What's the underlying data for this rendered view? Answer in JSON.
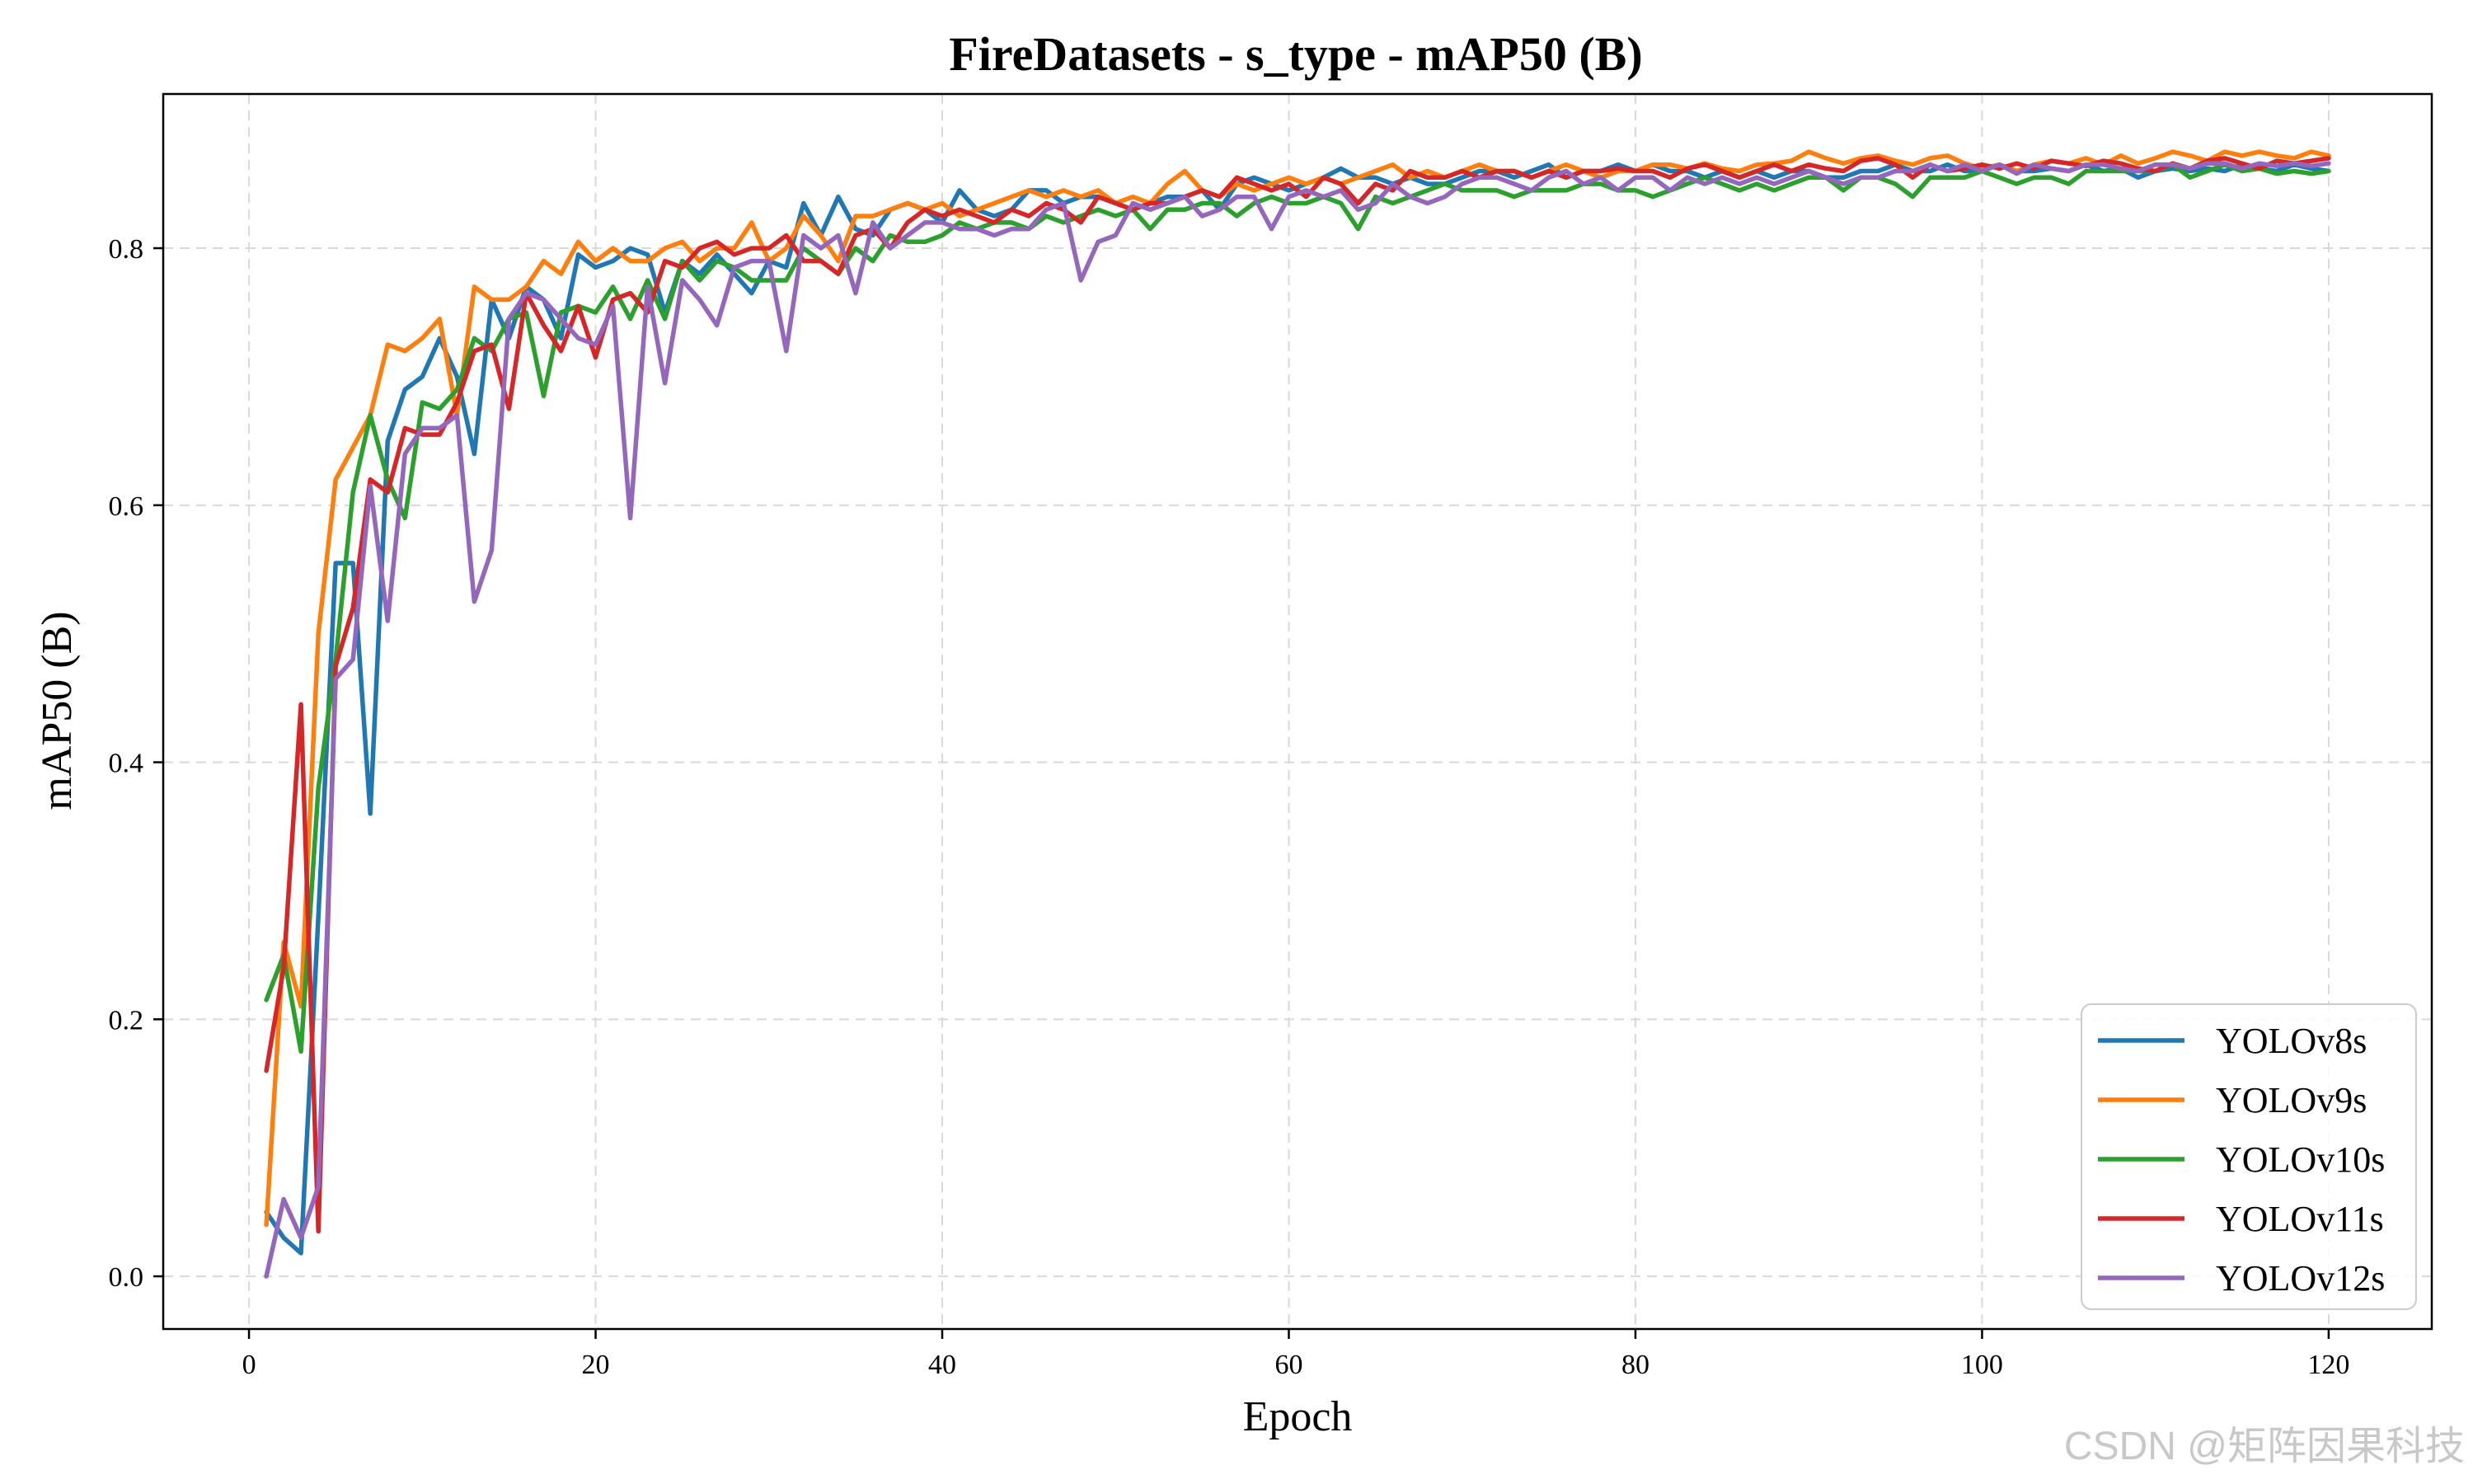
{
  "watermark": "CSDN @矩阵因果科技",
  "chart_data": {
    "type": "line",
    "title": "FireDatasets - s_type - mAP50 (B)",
    "xlabel": "Epoch",
    "ylabel": "mAP50 (B)",
    "xlim": [
      -4.95,
      125.95
    ],
    "ylim": [
      -0.041,
      0.92
    ],
    "xticks": [
      0,
      20,
      40,
      60,
      80,
      100,
      120
    ],
    "yticks": [
      0.0,
      0.2,
      0.4,
      0.6,
      0.8
    ],
    "xtick_labels": [
      "0",
      "20",
      "40",
      "60",
      "80",
      "100",
      "120"
    ],
    "ytick_labels": [
      "0.0",
      "0.2",
      "0.4",
      "0.6",
      "0.8"
    ],
    "grid": true,
    "legend_position": "lower-right",
    "x": [
      1,
      2,
      3,
      4,
      5,
      6,
      7,
      8,
      9,
      10,
      11,
      12,
      13,
      14,
      15,
      16,
      17,
      18,
      19,
      20,
      21,
      22,
      23,
      24,
      25,
      26,
      27,
      28,
      29,
      30,
      31,
      32,
      33,
      34,
      35,
      36,
      37,
      38,
      39,
      40,
      41,
      42,
      43,
      44,
      45,
      46,
      47,
      48,
      49,
      50,
      51,
      52,
      53,
      54,
      55,
      56,
      57,
      58,
      59,
      60,
      61,
      62,
      63,
      64,
      65,
      66,
      67,
      68,
      69,
      70,
      71,
      72,
      73,
      74,
      75,
      76,
      77,
      78,
      79,
      80,
      81,
      82,
      83,
      84,
      85,
      86,
      87,
      88,
      89,
      90,
      91,
      92,
      93,
      94,
      95,
      96,
      97,
      98,
      99,
      100,
      101,
      102,
      103,
      104,
      105,
      106,
      107,
      108,
      109,
      110,
      111,
      112,
      113,
      114,
      115,
      116,
      117,
      118,
      119,
      120
    ],
    "series": [
      {
        "name": "YOLOv8s",
        "color": "#1f77b4",
        "values": [
          0.05,
          0.03,
          0.018,
          0.28,
          0.555,
          0.555,
          0.36,
          0.65,
          0.69,
          0.7,
          0.73,
          0.7,
          0.64,
          0.76,
          0.73,
          0.77,
          0.76,
          0.73,
          0.795,
          0.785,
          0.79,
          0.8,
          0.795,
          0.75,
          0.79,
          0.78,
          0.795,
          0.78,
          0.765,
          0.79,
          0.785,
          0.835,
          0.81,
          0.84,
          0.815,
          0.81,
          0.83,
          0.835,
          0.83,
          0.82,
          0.845,
          0.83,
          0.825,
          0.83,
          0.845,
          0.845,
          0.835,
          0.84,
          0.84,
          0.835,
          0.83,
          0.835,
          0.84,
          0.84,
          0.845,
          0.83,
          0.85,
          0.855,
          0.85,
          0.845,
          0.85,
          0.855,
          0.862,
          0.855,
          0.855,
          0.85,
          0.855,
          0.85,
          0.85,
          0.855,
          0.86,
          0.86,
          0.855,
          0.86,
          0.865,
          0.855,
          0.86,
          0.86,
          0.865,
          0.86,
          0.865,
          0.86,
          0.86,
          0.855,
          0.86,
          0.855,
          0.86,
          0.855,
          0.86,
          0.86,
          0.855,
          0.855,
          0.86,
          0.86,
          0.865,
          0.86,
          0.86,
          0.865,
          0.86,
          0.86,
          0.865,
          0.86,
          0.86,
          0.862,
          0.86,
          0.865,
          0.86,
          0.862,
          0.855,
          0.86,
          0.862,
          0.86,
          0.862,
          0.86,
          0.865,
          0.862,
          0.86,
          0.865,
          0.862,
          0.86
        ]
      },
      {
        "name": "YOLOv9s",
        "color": "#ff7f0e",
        "values": [
          0.04,
          0.26,
          0.21,
          0.5,
          0.62,
          0.645,
          0.67,
          0.725,
          0.72,
          0.73,
          0.745,
          0.67,
          0.77,
          0.76,
          0.76,
          0.77,
          0.79,
          0.78,
          0.805,
          0.79,
          0.8,
          0.79,
          0.79,
          0.8,
          0.805,
          0.79,
          0.8,
          0.8,
          0.82,
          0.79,
          0.8,
          0.825,
          0.81,
          0.79,
          0.825,
          0.825,
          0.83,
          0.835,
          0.83,
          0.835,
          0.825,
          0.83,
          0.835,
          0.84,
          0.845,
          0.84,
          0.845,
          0.84,
          0.845,
          0.835,
          0.84,
          0.835,
          0.85,
          0.86,
          0.845,
          0.84,
          0.85,
          0.845,
          0.85,
          0.855,
          0.85,
          0.855,
          0.85,
          0.855,
          0.86,
          0.865,
          0.855,
          0.86,
          0.855,
          0.86,
          0.865,
          0.86,
          0.86,
          0.855,
          0.86,
          0.865,
          0.86,
          0.855,
          0.86,
          0.86,
          0.865,
          0.865,
          0.862,
          0.866,
          0.862,
          0.86,
          0.865,
          0.866,
          0.868,
          0.875,
          0.87,
          0.866,
          0.87,
          0.872,
          0.868,
          0.865,
          0.87,
          0.872,
          0.866,
          0.862,
          0.865,
          0.86,
          0.865,
          0.868,
          0.866,
          0.87,
          0.865,
          0.872,
          0.866,
          0.87,
          0.875,
          0.872,
          0.868,
          0.875,
          0.872,
          0.875,
          0.872,
          0.87,
          0.875,
          0.872
        ]
      },
      {
        "name": "YOLOv10s",
        "color": "#2ca02c",
        "values": [
          0.215,
          0.25,
          0.175,
          0.38,
          0.48,
          0.61,
          0.67,
          0.62,
          0.59,
          0.68,
          0.675,
          0.69,
          0.73,
          0.72,
          0.745,
          0.75,
          0.685,
          0.75,
          0.755,
          0.75,
          0.77,
          0.745,
          0.775,
          0.745,
          0.79,
          0.775,
          0.79,
          0.785,
          0.775,
          0.775,
          0.775,
          0.8,
          0.79,
          0.78,
          0.8,
          0.79,
          0.81,
          0.805,
          0.805,
          0.81,
          0.82,
          0.815,
          0.82,
          0.82,
          0.815,
          0.825,
          0.82,
          0.825,
          0.83,
          0.825,
          0.83,
          0.815,
          0.83,
          0.83,
          0.835,
          0.835,
          0.825,
          0.835,
          0.84,
          0.835,
          0.835,
          0.84,
          0.835,
          0.815,
          0.84,
          0.835,
          0.84,
          0.845,
          0.85,
          0.845,
          0.845,
          0.845,
          0.84,
          0.845,
          0.845,
          0.845,
          0.85,
          0.85,
          0.845,
          0.845,
          0.84,
          0.845,
          0.85,
          0.855,
          0.85,
          0.845,
          0.85,
          0.845,
          0.85,
          0.855,
          0.855,
          0.845,
          0.855,
          0.855,
          0.85,
          0.84,
          0.855,
          0.855,
          0.855,
          0.86,
          0.855,
          0.85,
          0.855,
          0.855,
          0.85,
          0.86,
          0.86,
          0.86,
          0.86,
          0.86,
          0.865,
          0.855,
          0.86,
          0.865,
          0.86,
          0.862,
          0.858,
          0.86,
          0.858,
          0.86
        ]
      },
      {
        "name": "YOLOv11s",
        "color": "#d62728",
        "values": [
          0.16,
          0.24,
          0.445,
          0.035,
          0.475,
          0.52,
          0.62,
          0.61,
          0.66,
          0.655,
          0.655,
          0.68,
          0.72,
          0.725,
          0.675,
          0.765,
          0.74,
          0.72,
          0.755,
          0.715,
          0.76,
          0.765,
          0.75,
          0.79,
          0.785,
          0.8,
          0.805,
          0.795,
          0.8,
          0.8,
          0.81,
          0.79,
          0.79,
          0.78,
          0.81,
          0.815,
          0.8,
          0.82,
          0.83,
          0.825,
          0.83,
          0.825,
          0.82,
          0.83,
          0.825,
          0.835,
          0.83,
          0.82,
          0.84,
          0.835,
          0.83,
          0.835,
          0.835,
          0.84,
          0.845,
          0.84,
          0.855,
          0.85,
          0.845,
          0.85,
          0.84,
          0.855,
          0.85,
          0.835,
          0.85,
          0.845,
          0.86,
          0.855,
          0.855,
          0.86,
          0.855,
          0.86,
          0.86,
          0.855,
          0.86,
          0.855,
          0.86,
          0.86,
          0.862,
          0.86,
          0.86,
          0.855,
          0.862,
          0.865,
          0.86,
          0.855,
          0.86,
          0.865,
          0.86,
          0.865,
          0.862,
          0.86,
          0.868,
          0.87,
          0.865,
          0.855,
          0.865,
          0.86,
          0.862,
          0.865,
          0.862,
          0.866,
          0.862,
          0.868,
          0.866,
          0.864,
          0.868,
          0.866,
          0.862,
          0.86,
          0.866,
          0.862,
          0.868,
          0.87,
          0.866,
          0.862,
          0.868,
          0.866,
          0.868,
          0.87
        ]
      },
      {
        "name": "YOLOv12s",
        "color": "#9467bd",
        "values": [
          0.0,
          0.06,
          0.03,
          0.07,
          0.465,
          0.48,
          0.615,
          0.51,
          0.64,
          0.66,
          0.66,
          0.67,
          0.525,
          0.565,
          0.745,
          0.765,
          0.76,
          0.745,
          0.73,
          0.725,
          0.755,
          0.59,
          0.77,
          0.695,
          0.775,
          0.76,
          0.74,
          0.785,
          0.79,
          0.79,
          0.72,
          0.81,
          0.8,
          0.81,
          0.765,
          0.82,
          0.8,
          0.81,
          0.82,
          0.82,
          0.815,
          0.815,
          0.81,
          0.815,
          0.815,
          0.83,
          0.835,
          0.775,
          0.805,
          0.81,
          0.835,
          0.83,
          0.835,
          0.84,
          0.825,
          0.83,
          0.84,
          0.84,
          0.815,
          0.84,
          0.845,
          0.84,
          0.845,
          0.83,
          0.835,
          0.85,
          0.84,
          0.835,
          0.84,
          0.85,
          0.855,
          0.855,
          0.85,
          0.845,
          0.855,
          0.86,
          0.85,
          0.855,
          0.845,
          0.855,
          0.855,
          0.845,
          0.855,
          0.85,
          0.855,
          0.85,
          0.855,
          0.85,
          0.855,
          0.86,
          0.855,
          0.85,
          0.855,
          0.855,
          0.86,
          0.86,
          0.865,
          0.86,
          0.865,
          0.86,
          0.865,
          0.858,
          0.865,
          0.862,
          0.86,
          0.865,
          0.865,
          0.862,
          0.86,
          0.865,
          0.865,
          0.862,
          0.866,
          0.866,
          0.862,
          0.866,
          0.864,
          0.866,
          0.864,
          0.866
        ]
      }
    ]
  }
}
